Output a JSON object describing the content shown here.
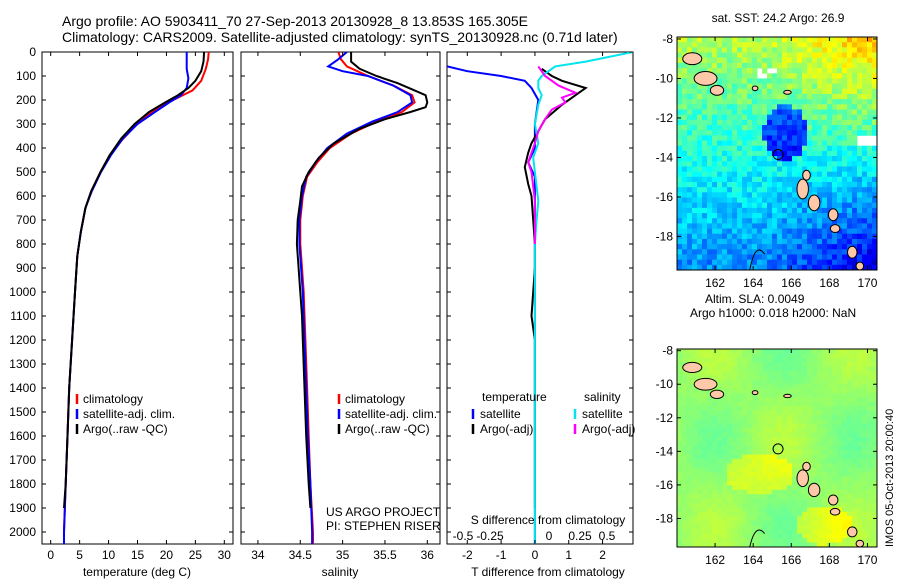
{
  "header": {
    "title1": "Argo profile: AO 5903411_70 27-Sep-2013 20130928_8 13.853S 165.305E",
    "title2": "Climatology: CARS2009. Satellite-adjusted climatology: synTS_20130928.nc (0.71d later)"
  },
  "credits": {
    "project": "US ARGO PROJECT",
    "pi": "PI: STEPHEN RISER",
    "stamp": "IMOS 05-Oct-2013 20:00:40"
  },
  "colors": {
    "climatology": "#ff0000",
    "satellite": "#0000ff",
    "argo": "#000000",
    "t_satellite": "#0000ff",
    "t_argo": "#000000",
    "s_satellite": "#00e5ee",
    "s_argo": "#ff00ff",
    "land": "#ffc8a8"
  },
  "depth_axis": {
    "ylim": [
      0,
      2050
    ],
    "ticks": [
      0,
      100,
      200,
      300,
      400,
      500,
      600,
      700,
      800,
      900,
      1000,
      1100,
      1200,
      1300,
      1400,
      1500,
      1600,
      1700,
      1800,
      1900,
      2000
    ]
  },
  "chart_data": [
    {
      "id": "temperature",
      "type": "line",
      "xlabel": "temperature (deg C)",
      "xlim": [
        -1.5,
        31.5
      ],
      "xticks": [
        0,
        5,
        10,
        15,
        20,
        25,
        30
      ],
      "legend": [
        "climatology",
        "satellite-adj. clim.",
        "Argo(..raw -QC)"
      ],
      "series": [
        {
          "name": "climatology",
          "color_key": "climatology",
          "points": [
            [
              27.3,
              0
            ],
            [
              27.2,
              30
            ],
            [
              26.8,
              70
            ],
            [
              26.0,
              120
            ],
            [
              24.5,
              160
            ],
            [
              22.0,
              190
            ],
            [
              19.5,
              220
            ],
            [
              17.0,
              260
            ],
            [
              14.5,
              310
            ],
            [
              12.2,
              370
            ],
            [
              10.2,
              430
            ],
            [
              8.6,
              500
            ],
            [
              7.0,
              580
            ],
            [
              6.0,
              650
            ],
            [
              5.2,
              750
            ],
            [
              4.6,
              850
            ],
            [
              4.2,
              1000
            ],
            [
              3.7,
              1200
            ],
            [
              3.2,
              1400
            ],
            [
              2.9,
              1600
            ],
            [
              2.6,
              1800
            ],
            [
              2.3,
              2000
            ],
            [
              2.3,
              2050
            ]
          ]
        },
        {
          "name": "satellite-adj. clim.",
          "color_key": "satellite",
          "points": [
            [
              23.5,
              0
            ],
            [
              23.5,
              70
            ],
            [
              23.8,
              110
            ],
            [
              23.5,
              150
            ],
            [
              22.5,
              180
            ],
            [
              20.5,
              210
            ],
            [
              18.0,
              250
            ],
            [
              15.0,
              300
            ],
            [
              12.5,
              360
            ],
            [
              10.4,
              430
            ],
            [
              8.7,
              500
            ],
            [
              7.1,
              580
            ],
            [
              6.0,
              650
            ],
            [
              5.2,
              750
            ],
            [
              4.6,
              850
            ],
            [
              4.2,
              1000
            ],
            [
              3.7,
              1200
            ],
            [
              3.2,
              1400
            ],
            [
              2.9,
              1600
            ],
            [
              2.6,
              1800
            ],
            [
              2.3,
              2000
            ],
            [
              2.3,
              2050
            ]
          ]
        },
        {
          "name": "Argo(..raw -QC)",
          "color_key": "argo",
          "points": [
            [
              26.5,
              0
            ],
            [
              26.4,
              40
            ],
            [
              26.0,
              80
            ],
            [
              25.0,
              120
            ],
            [
              23.8,
              150
            ],
            [
              22.0,
              180
            ],
            [
              19.8,
              210
            ],
            [
              17.0,
              250
            ],
            [
              14.5,
              300
            ],
            [
              12.2,
              360
            ],
            [
              10.2,
              430
            ],
            [
              8.6,
              500
            ],
            [
              7.0,
              580
            ],
            [
              6.0,
              650
            ],
            [
              5.2,
              750
            ],
            [
              4.6,
              850
            ],
            [
              4.2,
              1000
            ],
            [
              3.7,
              1200
            ],
            [
              3.2,
              1400
            ],
            [
              2.9,
              1600
            ],
            [
              2.6,
              1800
            ],
            [
              2.3,
              1900
            ]
          ]
        }
      ]
    },
    {
      "id": "salinity",
      "type": "line",
      "xlabel": "salinity",
      "xlim": [
        33.8,
        36.15
      ],
      "xticks": [
        34,
        34.5,
        35,
        35.5,
        36
      ],
      "xtick_labels": [
        "34",
        "34.5",
        "35",
        "35.5",
        "36"
      ],
      "legend": [
        "climatology",
        "satellite-adj. clim.",
        "Argo(..raw -QC)"
      ],
      "series": [
        {
          "name": "climatology",
          "color_key": "climatology",
          "points": [
            [
              34.95,
              0
            ],
            [
              34.98,
              30
            ],
            [
              35.05,
              60
            ],
            [
              35.3,
              100
            ],
            [
              35.6,
              140
            ],
            [
              35.82,
              180
            ],
            [
              35.85,
              210
            ],
            [
              35.7,
              250
            ],
            [
              35.4,
              290
            ],
            [
              35.1,
              340
            ],
            [
              34.85,
              400
            ],
            [
              34.7,
              460
            ],
            [
              34.58,
              520
            ],
            [
              34.53,
              600
            ],
            [
              34.5,
              700
            ],
            [
              34.5,
              800
            ],
            [
              34.52,
              900
            ],
            [
              34.54,
              1000
            ],
            [
              34.56,
              1200
            ],
            [
              34.58,
              1400
            ],
            [
              34.6,
              1600
            ],
            [
              34.62,
              1800
            ],
            [
              34.65,
              2000
            ],
            [
              34.65,
              2050
            ]
          ]
        },
        {
          "name": "satellite-adj. clim.",
          "color_key": "satellite",
          "points": [
            [
              35.05,
              0
            ],
            [
              34.95,
              30
            ],
            [
              34.83,
              60
            ],
            [
              35.0,
              80
            ],
            [
              35.3,
              100
            ],
            [
              35.6,
              140
            ],
            [
              35.8,
              180
            ],
            [
              35.82,
              210
            ],
            [
              35.65,
              250
            ],
            [
              35.35,
              290
            ],
            [
              35.05,
              340
            ],
            [
              34.82,
              400
            ],
            [
              34.68,
              460
            ],
            [
              34.57,
              520
            ],
            [
              34.52,
              600
            ],
            [
              34.49,
              700
            ],
            [
              34.49,
              800
            ],
            [
              34.51,
              900
            ],
            [
              34.53,
              1000
            ],
            [
              34.55,
              1200
            ],
            [
              34.57,
              1400
            ],
            [
              34.59,
              1600
            ],
            [
              34.62,
              1800
            ],
            [
              34.64,
              2000
            ],
            [
              34.64,
              2050
            ]
          ]
        },
        {
          "name": "Argo(..raw -QC)",
          "color_key": "argo",
          "points": [
            [
              35.1,
              0
            ],
            [
              35.1,
              40
            ],
            [
              35.2,
              70
            ],
            [
              35.4,
              100
            ],
            [
              35.65,
              130
            ],
            [
              35.85,
              160
            ],
            [
              35.98,
              180
            ],
            [
              36.0,
              210
            ],
            [
              35.98,
              230
            ],
            [
              35.8,
              250
            ],
            [
              35.5,
              280
            ],
            [
              35.2,
              320
            ],
            [
              34.9,
              380
            ],
            [
              34.72,
              440
            ],
            [
              34.6,
              500
            ],
            [
              34.52,
              560
            ],
            [
              34.5,
              620
            ],
            [
              34.47,
              700
            ],
            [
              34.46,
              800
            ],
            [
              34.48,
              900
            ],
            [
              34.5,
              1000
            ],
            [
              34.52,
              1100
            ],
            [
              34.53,
              1200
            ],
            [
              34.55,
              1400
            ],
            [
              34.57,
              1600
            ],
            [
              34.6,
              1800
            ],
            [
              34.62,
              1900
            ]
          ]
        }
      ]
    },
    {
      "id": "difference",
      "type": "line",
      "xlabel": "T difference from climatology",
      "top_label": "S difference from climatology",
      "xlim": [
        -2.6,
        2.9
      ],
      "xticks": [
        -2,
        -1,
        0,
        1,
        2
      ],
      "top_ticks": [
        -0.5,
        -0.25,
        0,
        0.25,
        0.5
      ],
      "top_tick_labels": [
        "-0.5",
        "-0.25",
        "0",
        "0.25",
        "0.5"
      ],
      "legend_temperature": {
        "title": "temperature",
        "items": [
          "satellite",
          "Argo(-adj)"
        ]
      },
      "legend_salinity": {
        "title": "salinity",
        "items": [
          "satellite",
          "Argo(-adj)"
        ]
      },
      "series": [
        {
          "name": "temperature satellite",
          "color_key": "t_satellite",
          "points": [
            [
              -2.6,
              60
            ],
            [
              -2.0,
              80
            ],
            [
              -1.0,
              100
            ],
            [
              -0.3,
              120
            ],
            [
              -0.1,
              150
            ],
            [
              0.1,
              200
            ],
            [
              0.0,
              300
            ],
            [
              0.0,
              400
            ],
            [
              -0.2,
              460
            ],
            [
              0.0,
              520
            ],
            [
              0.0,
              700
            ],
            [
              0.0,
              1000
            ],
            [
              0.0,
              1500
            ],
            [
              0.0,
              2000
            ],
            [
              0.0,
              2050
            ]
          ]
        },
        {
          "name": "temperature Argo(-adj)",
          "color_key": "t_argo",
          "points": [
            [
              0.2,
              70
            ],
            [
              0.5,
              100
            ],
            [
              0.8,
              120
            ],
            [
              1.5,
              150
            ],
            [
              1.2,
              180
            ],
            [
              0.8,
              220
            ],
            [
              0.3,
              280
            ],
            [
              0.1,
              330
            ],
            [
              -0.1,
              380
            ],
            [
              -0.2,
              420
            ],
            [
              -0.3,
              480
            ],
            [
              -0.2,
              550
            ],
            [
              -0.1,
              600
            ],
            [
              -0.05,
              700
            ],
            [
              0.0,
              800
            ],
            [
              0.0,
              900
            ],
            [
              -0.05,
              1000
            ],
            [
              -0.1,
              1100
            ],
            [
              0.0,
              1200
            ],
            [
              0.0,
              1500
            ],
            [
              0.0,
              1900
            ]
          ]
        },
        {
          "name": "salinity satellite",
          "color_key": "s_satellite",
          "points": [
            [
              2.9,
              0
            ],
            [
              1.5,
              40
            ],
            [
              0.6,
              60
            ],
            [
              0.4,
              80
            ],
            [
              0.2,
              100
            ],
            [
              0.1,
              120
            ],
            [
              0.1,
              150
            ],
            [
              0.2,
              180
            ],
            [
              0.1,
              220
            ],
            [
              0.0,
              300
            ],
            [
              0.1,
              380
            ],
            [
              -0.05,
              440
            ],
            [
              0.0,
              500
            ],
            [
              0.05,
              560
            ],
            [
              0.1,
              620
            ],
            [
              0.05,
              700
            ],
            [
              0.0,
              800
            ],
            [
              0.0,
              1000
            ],
            [
              0.0,
              1500
            ],
            [
              0.0,
              2000
            ],
            [
              0.0,
              2050
            ]
          ]
        },
        {
          "name": "salinity Argo(-adj)",
          "color_key": "s_argo",
          "points": [
            [
              0.1,
              60
            ],
            [
              0.3,
              100
            ],
            [
              0.7,
              140
            ],
            [
              1.2,
              170
            ],
            [
              0.8,
              190
            ],
            [
              0.9,
              210
            ],
            [
              0.5,
              240
            ],
            [
              0.3,
              280
            ],
            [
              0.1,
              330
            ],
            [
              0.0,
              380
            ],
            [
              -0.1,
              420
            ],
            [
              -0.2,
              460
            ],
            [
              -0.1,
              500
            ],
            [
              -0.05,
              560
            ],
            [
              0.0,
              620
            ],
            [
              0.0,
              700
            ],
            [
              0.0,
              800
            ]
          ]
        }
      ]
    },
    {
      "id": "sst_map",
      "type": "heatmap",
      "title": "sat. SST: 24.2  Argo: 26.9",
      "xlim": [
        160,
        170.5
      ],
      "ylim": [
        -19.7,
        -7.9
      ],
      "xticks": [
        162,
        164,
        166,
        168,
        170
      ],
      "yticks": [
        -8,
        -10,
        -12,
        -14,
        -16,
        -18
      ],
      "argo_position": [
        165.305,
        -13.853
      ]
    },
    {
      "id": "sla_map",
      "type": "heatmap",
      "title1": "Altim. SLA: 0.0049",
      "title2": "Argo h1000: 0.018 h2000: NaN",
      "xlim": [
        160,
        170.5
      ],
      "ylim": [
        -19.7,
        -7.9
      ],
      "xticks": [
        162,
        164,
        166,
        168,
        170
      ],
      "yticks": [
        -8,
        -10,
        -12,
        -14,
        -16,
        -18
      ],
      "argo_position": [
        165.305,
        -13.853
      ]
    }
  ]
}
